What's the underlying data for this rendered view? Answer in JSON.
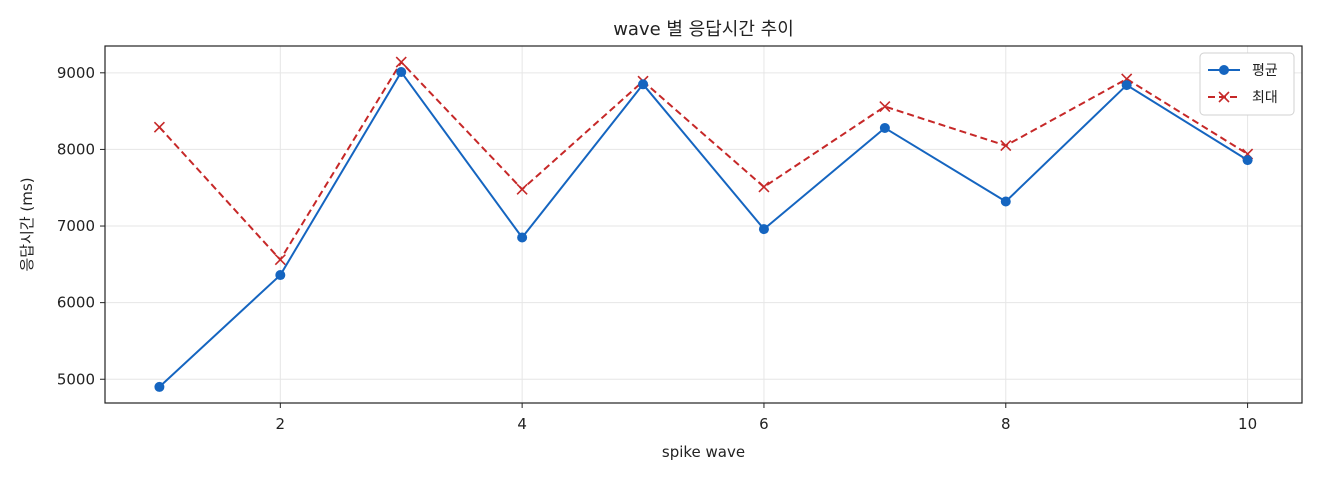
{
  "chart_data": {
    "type": "line",
    "title": "wave 별 응답시간 추이",
    "xlabel": "spike wave",
    "ylabel": "응답시간 (ms)",
    "x": [
      1,
      2,
      3,
      4,
      5,
      6,
      7,
      8,
      9,
      10
    ],
    "xlim": [
      0.55,
      10.45
    ],
    "ylim": [
      4690,
      9350
    ],
    "xticks": [
      2,
      4,
      6,
      8,
      10
    ],
    "yticks": [
      5000,
      6000,
      7000,
      8000,
      9000
    ],
    "grid": true,
    "legend_position": "top-right",
    "series": [
      {
        "name": "평균",
        "color": "#1565c0",
        "line_style": "solid",
        "marker": "circle",
        "values": [
          4900,
          6360,
          9010,
          6850,
          8850,
          6960,
          8280,
          7320,
          8840,
          7860
        ]
      },
      {
        "name": "최대",
        "color": "#c62828",
        "line_style": "dashed",
        "marker": "x",
        "values": [
          8290,
          6560,
          9140,
          7480,
          8890,
          7510,
          8560,
          8050,
          8920,
          7940
        ]
      }
    ]
  }
}
